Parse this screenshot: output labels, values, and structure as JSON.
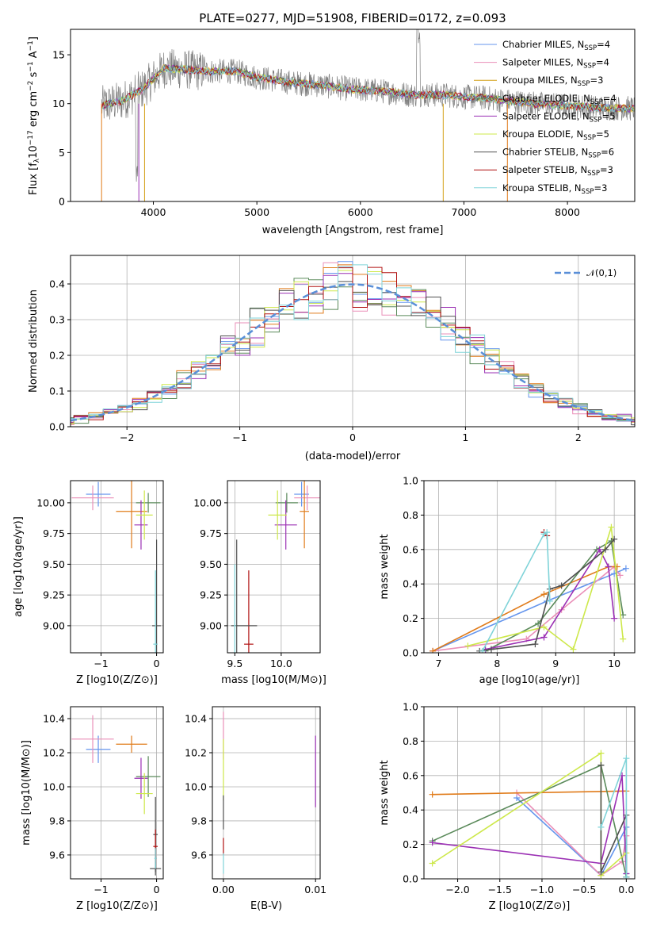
{
  "chart_data": [
    {
      "type": "line",
      "title": "PLATE=0277, MJD=51908, FIBERID=0172, z=0.093",
      "xlabel": "wavelength [Angstrom, rest frame]",
      "ylabel": "Flux [f_λ10^-17 erg cm^-2 s^-1 A^-1]",
      "xlim": [
        3200,
        8650
      ],
      "ylim": [
        0,
        17.6
      ],
      "xticks": [
        "4000",
        "5000",
        "6000",
        "7000",
        "8000"
      ],
      "yticks": [
        "0",
        "5",
        "10",
        "15"
      ],
      "legend_position": "top-right",
      "legend": [
        {
          "name": "Chabrier MILES, N_SSP=4",
          "color": "#6495ed"
        },
        {
          "name": "Salpeter MILES, N_SSP=4",
          "color": "#ea8fb8"
        },
        {
          "name": "Kroupa MILES, N_SSP=3",
          "color": "#d4a017"
        },
        {
          "name": "Chabrier ELODIE, N_SSP=4",
          "color": "#5a8a5a"
        },
        {
          "name": "Salpeter ELODIE, N_SSP=5",
          "color": "#9b30b4"
        },
        {
          "name": "Kroupa ELODIE, N_SSP=5",
          "color": "#cde84a"
        },
        {
          "name": "Chabrier STELIB, N_SSP=6",
          "color": "#505050"
        },
        {
          "name": "Salpeter STELIB, N_SSP=3",
          "color": "#b01010"
        },
        {
          "name": "Kroupa STELIB, N_SSP=3",
          "color": "#7fd3d8"
        }
      ],
      "data_color": "#808080",
      "model_trend": {
        "x": [
          3500,
          3700,
          3900,
          4100,
          4300,
          4500,
          4800,
          5000,
          5300,
          5600,
          5900,
          6200,
          6500,
          6800,
          7000,
          7200,
          7400,
          7600,
          7800,
          8000,
          8300,
          8650
        ],
        "y": [
          9.8,
          10.3,
          11.5,
          13.6,
          13.5,
          13.3,
          13.3,
          12.7,
          12.2,
          11.9,
          11.5,
          11.3,
          10.9,
          10.9,
          10.7,
          10.6,
          10.3,
          10.1,
          9.9,
          9.8,
          9.6,
          9.5
        ]
      }
    },
    {
      "type": "line",
      "xlabel": "(data-model)/error",
      "ylabel": "Normed distribution",
      "xlim": [
        -2.5,
        2.5
      ],
      "ylim": [
        0,
        0.48
      ],
      "xticks": [
        "−2",
        "−1",
        "0",
        "1",
        "2"
      ],
      "yticks": [
        "0.0",
        "0.1",
        "0.2",
        "0.3",
        "0.4"
      ],
      "legend_position": "top-right",
      "reference": {
        "name": "𝒩(0,1)",
        "color": "#5a8fd8"
      },
      "bins": 40,
      "series_colors": [
        "#6495ed",
        "#ea8fb8",
        "#e07b1a",
        "#5a8a5a",
        "#9b30b4",
        "#cde84a",
        "#505050",
        "#b01010",
        "#7fd3d8"
      ]
    },
    {
      "type": "scatter",
      "xlabel": "Z [log10(Z/Z⊙)]",
      "ylabel": "age  [log10(age/yr)]",
      "xlim": [
        -1.55,
        0.12
      ],
      "ylim": [
        8.78,
        10.18
      ],
      "xticks": [
        "−1",
        "0"
      ],
      "yticks": [
        "9.00",
        "9.25",
        "9.50",
        "9.75",
        "10.00"
      ],
      "points": [
        {
          "x": -1.05,
          "y": 10.07,
          "xerr": 0.22,
          "yerr": 0.1,
          "color": "#6495ed"
        },
        {
          "x": -1.15,
          "y": 10.04,
          "xerr": 0.38,
          "yerr": 0.1,
          "color": "#ea8fb8"
        },
        {
          "x": -0.45,
          "y": 9.93,
          "xerr": 0.28,
          "yerr": 0.3,
          "color": "#e07b1a"
        },
        {
          "x": -0.15,
          "y": 10.0,
          "xerr": 0.22,
          "yerr": 0.08,
          "color": "#5a8a5a"
        },
        {
          "x": -0.28,
          "y": 9.82,
          "xerr": 0.12,
          "yerr": 0.2,
          "color": "#9b30b4"
        },
        {
          "x": -0.22,
          "y": 9.9,
          "xerr": 0.15,
          "yerr": 0.2,
          "color": "#cde84a"
        },
        {
          "x": 0.0,
          "y": 9.0,
          "xerr": 0.08,
          "yerr": 0.7,
          "color": "#505050"
        },
        {
          "x": -0.02,
          "y": 8.85,
          "xerr": 0.04,
          "yerr": 0.6,
          "color": "#7fd3d8"
        }
      ]
    },
    {
      "type": "scatter",
      "xlabel": "mass [log10(M/M⊙)]",
      "xlim": [
        9.42,
        10.42
      ],
      "ylim": [
        8.78,
        10.18
      ],
      "xticks": [
        "9.5",
        "10.0"
      ],
      "yticks": [
        "9.00",
        "9.25",
        "9.50",
        "9.75",
        "10.00"
      ],
      "points": [
        {
          "x": 10.22,
          "y": 10.07,
          "xerr": 0.08,
          "yerr": 0.1,
          "color": "#6495ed"
        },
        {
          "x": 10.28,
          "y": 10.04,
          "xerr": 0.14,
          "yerr": 0.1,
          "color": "#ea8fb8"
        },
        {
          "x": 10.25,
          "y": 9.93,
          "xerr": 0.05,
          "yerr": 0.3,
          "color": "#e07b1a"
        },
        {
          "x": 10.06,
          "y": 10.0,
          "xerr": 0.12,
          "yerr": 0.08,
          "color": "#5a8a5a"
        },
        {
          "x": 10.05,
          "y": 9.82,
          "xerr": 0.12,
          "yerr": 0.2,
          "color": "#9b30b4"
        },
        {
          "x": 9.96,
          "y": 9.9,
          "xerr": 0.1,
          "yerr": 0.2,
          "color": "#cde84a"
        },
        {
          "x": 9.52,
          "y": 9.0,
          "xerr": 0.01,
          "yerr": 0.7,
          "color": "#505050"
        },
        {
          "x": 9.65,
          "y": 8.85,
          "xerr": 0.05,
          "yerr": 0.6,
          "color": "#b01010"
        },
        {
          "x": 9.6,
          "y": 9.0,
          "xerr": 0.14,
          "yerr": 0.0,
          "color": "#505050"
        },
        {
          "x": 9.5,
          "y": 9.0,
          "xerr": 0.01,
          "yerr": 0.5,
          "color": "#7fd3d8"
        }
      ]
    },
    {
      "type": "line",
      "xlabel": "age  [log10(age/yr)]",
      "ylabel": "mass weight",
      "xlim": [
        6.75,
        10.35
      ],
      "ylim": [
        0,
        1
      ],
      "xticks": [
        "7",
        "8",
        "9",
        "10"
      ],
      "yticks": [
        "0.0",
        "0.2",
        "0.4",
        "0.6",
        "0.8",
        "1.0"
      ],
      "series": [
        {
          "color": "#6495ed",
          "x": [
            6.9,
            8.85,
            10.0,
            10.2
          ],
          "y": [
            0.01,
            0.3,
            0.46,
            0.49
          ]
        },
        {
          "color": "#ea8fb8",
          "x": [
            6.9,
            8.5,
            9.1,
            10.0,
            10.1
          ],
          "y": [
            0.01,
            0.08,
            0.25,
            0.5,
            0.45
          ]
        },
        {
          "color": "#e07b1a",
          "x": [
            6.9,
            8.8,
            9.9,
            10.05
          ],
          "y": [
            0.01,
            0.34,
            0.5,
            0.5
          ]
        },
        {
          "color": "#5a8a5a",
          "x": [
            7.8,
            8.7,
            9.7,
            9.95,
            10.15
          ],
          "y": [
            0.01,
            0.17,
            0.6,
            0.65,
            0.22
          ]
        },
        {
          "color": "#9b30b4",
          "x": [
            7.8,
            8.8,
            9.75,
            9.9,
            10.0
          ],
          "y": [
            0.02,
            0.09,
            0.6,
            0.5,
            0.2
          ]
        },
        {
          "color": "#cde84a",
          "x": [
            7.5,
            8.8,
            9.3,
            9.95,
            10.15
          ],
          "y": [
            0.04,
            0.15,
            0.02,
            0.73,
            0.08
          ]
        },
        {
          "color": "#505050",
          "x": [
            7.7,
            7.9,
            8.65,
            8.9,
            9.1,
            9.85,
            10.0
          ],
          "y": [
            0.01,
            0.02,
            0.05,
            0.37,
            0.39,
            0.6,
            0.66
          ]
        },
        {
          "color": "#b01010",
          "x": [
            8.8,
            8.85
          ],
          "y": [
            0.7,
            0.68
          ]
        },
        {
          "color": "#7fd3d8",
          "x": [
            7.75,
            8.8,
            8.85,
            8.9
          ],
          "y": [
            0.01,
            0.69,
            0.7,
            0.3
          ]
        }
      ]
    },
    {
      "type": "scatter",
      "xlabel": "Z [log10(Z/Z⊙)]",
      "ylabel": "mass [log10(M/M⊙)]",
      "xlim": [
        -1.55,
        0.12
      ],
      "ylim": [
        9.46,
        10.47
      ],
      "xticks": [
        "−1",
        "0"
      ],
      "yticks": [
        "9.6",
        "9.8",
        "10.0",
        "10.2",
        "10.4"
      ],
      "points": [
        {
          "x": -1.05,
          "y": 10.22,
          "xerr": 0.22,
          "yerr": 0.08,
          "color": "#6495ed"
        },
        {
          "x": -1.15,
          "y": 10.28,
          "xerr": 0.38,
          "yerr": 0.14,
          "color": "#ea8fb8"
        },
        {
          "x": -0.45,
          "y": 10.25,
          "xerr": 0.28,
          "yerr": 0.05,
          "color": "#e07b1a"
        },
        {
          "x": -0.15,
          "y": 10.06,
          "xerr": 0.22,
          "yerr": 0.12,
          "color": "#5a8a5a"
        },
        {
          "x": -0.28,
          "y": 10.05,
          "xerr": 0.12,
          "yerr": 0.12,
          "color": "#9b30b4"
        },
        {
          "x": -0.22,
          "y": 9.96,
          "xerr": 0.15,
          "yerr": 0.12,
          "color": "#cde84a"
        },
        {
          "x": -0.02,
          "y": 9.72,
          "xerr": 0.04,
          "yerr": 0.22,
          "color": "#505050"
        },
        {
          "x": -0.02,
          "y": 9.65,
          "xerr": 0.04,
          "yerr": 0.1,
          "color": "#b01010"
        },
        {
          "x": -0.02,
          "y": 9.52,
          "xerr": 0.1,
          "yerr": 0.04,
          "color": "#505050"
        },
        {
          "x": -0.02,
          "y": 9.58,
          "xerr": 0.02,
          "yerr": 0.06,
          "color": "#7fd3d8"
        }
      ]
    },
    {
      "type": "scatter",
      "xlabel": "E(B-V)",
      "xlim": [
        -0.0012,
        0.0105
      ],
      "ylim": [
        9.46,
        10.47
      ],
      "xticks": [
        "0.00",
        "0.01"
      ],
      "yticks": [
        "9.6",
        "9.8",
        "10.0",
        "10.2",
        "10.4"
      ],
      "points": [
        {
          "x": 0.0,
          "y": 10.3,
          "yerr": 0.14,
          "color": "#ea8fb8"
        },
        {
          "x": 0.0,
          "y": 10.1,
          "yerr": 0.18,
          "color": "#cde84a"
        },
        {
          "x": 0.0,
          "y": 9.85,
          "yerr": 0.1,
          "color": "#505050"
        },
        {
          "x": 0.0,
          "y": 9.65,
          "yerr": 0.05,
          "color": "#b01010"
        },
        {
          "x": 0.0,
          "y": 9.55,
          "yerr": 0.06,
          "color": "#7fd3d8"
        },
        {
          "x": 0.01,
          "y": 10.09,
          "yerr": 0.21,
          "color": "#9b30b4"
        }
      ]
    },
    {
      "type": "line",
      "xlabel": "Z [log10(Z/Z⊙)]",
      "ylabel": "mass weight",
      "xlim": [
        -2.4,
        0.1
      ],
      "ylim": [
        0,
        1
      ],
      "xticks": [
        "−2.0",
        "−1.5",
        "−1.0",
        "−0.5",
        "0.0"
      ],
      "yticks": [
        "0.0",
        "0.2",
        "0.4",
        "0.6",
        "0.8",
        "1.0"
      ],
      "series": [
        {
          "color": "#6495ed",
          "x": [
            -1.3,
            -0.3,
            0.0,
            0.0
          ],
          "y": [
            0.47,
            0.02,
            0.3,
            0.03
          ]
        },
        {
          "color": "#ea8fb8",
          "x": [
            -1.3,
            -0.3,
            -0.05,
            0.0
          ],
          "y": [
            0.5,
            0.02,
            0.1,
            0.25
          ]
        },
        {
          "color": "#e07b1a",
          "x": [
            -2.3,
            0.0
          ],
          "y": [
            0.49,
            0.51
          ]
        },
        {
          "color": "#5a8a5a",
          "x": [
            -2.3,
            -0.3,
            0.0
          ],
          "y": [
            0.22,
            0.66,
            0.01
          ]
        },
        {
          "color": "#9b30b4",
          "x": [
            -2.3,
            -0.3,
            -0.05,
            0.0
          ],
          "y": [
            0.21,
            0.09,
            0.6,
            0.03
          ]
        },
        {
          "color": "#cde84a",
          "x": [
            -2.3,
            -0.3,
            -0.3,
            0.0
          ],
          "y": [
            0.09,
            0.73,
            0.02,
            0.15
          ]
        },
        {
          "color": "#505050",
          "x": [
            -0.3,
            -0.3,
            0.0,
            0.0
          ],
          "y": [
            0.66,
            0.04,
            0.37,
            0.01
          ]
        },
        {
          "color": "#7fd3d8",
          "x": [
            -0.3,
            0.0,
            0.0
          ],
          "y": [
            0.3,
            0.7,
            0.01
          ]
        }
      ]
    }
  ]
}
